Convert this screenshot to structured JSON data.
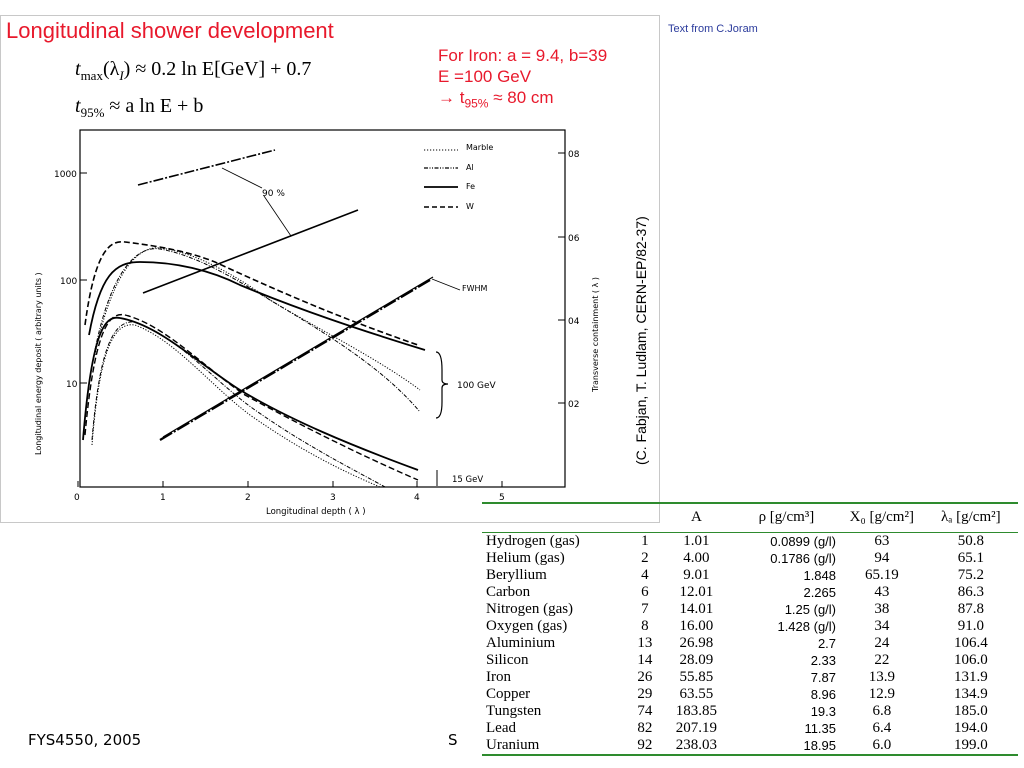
{
  "slide": {
    "title": "Longitudinal shower development",
    "credit": "Text from C.Joram",
    "iron_note": {
      "line1": "For Iron: a = 9.4, b=39",
      "line2": "E =100 GeV",
      "line3_prefix": "→ t",
      "line3_sub": "95%",
      "line3_suffix": " ≈ 80 cm"
    },
    "reference": "(C. Fabjan, T. Ludlam, CERN-EP/82-37)",
    "footer_left": "FYS4550, 2005",
    "footer_mid": "S"
  },
  "formulas": {
    "tmax": "t",
    "tmax_sub": "max",
    "tmax_rest": "(λ",
    "tmax_rest_sub": "I",
    "tmax_rhs": ") ≈ 0.2 ln E[GeV] + 0.7",
    "t95": "t",
    "t95_sub": "95%",
    "t95_rhs": " ≈ a ln E + b"
  },
  "plot": {
    "xlabel": "Longitudinal   depth  ( λ )",
    "ylabel_left": "Longitudinal   energy   deposit   ( arbitrary  units )",
    "ylabel_right": "Transverse   containment  ( λ )",
    "xticks": [
      "0",
      "1",
      "2",
      "3",
      "4",
      "5"
    ],
    "yticks_left": [
      "1000",
      "100",
      "10"
    ],
    "yticks_right": [
      "08",
      "06",
      "04",
      "02"
    ],
    "legend": [
      "Marble",
      "Al",
      "Fe",
      "W"
    ],
    "annotations": {
      "p90": "90 %",
      "fwhm": "FWHM",
      "gev100": "100 GeV",
      "gev15": "15 GeV"
    }
  },
  "table": {
    "headers": [
      "",
      "",
      "A",
      "ρ [g/cm³]",
      "X₀ [g/cm²]",
      "λₐ [g/cm²]"
    ],
    "rows": [
      [
        "Hydrogen (gas)",
        "1",
        "1.01",
        "0.0899 (g/l)",
        "63",
        "50.8"
      ],
      [
        "Helium (gas)",
        "2",
        "4.00",
        "0.1786 (g/l)",
        "94",
        "65.1"
      ],
      [
        "Beryllium",
        "4",
        "9.01",
        "1.848",
        "65.19",
        "75.2"
      ],
      [
        "Carbon",
        "6",
        "12.01",
        "2.265",
        "43",
        "86.3"
      ],
      [
        "Nitrogen (gas)",
        "7",
        "14.01",
        "1.25 (g/l)",
        "38",
        "87.8"
      ],
      [
        "Oxygen (gas)",
        "8",
        "16.00",
        "1.428 (g/l)",
        "34",
        "91.0"
      ],
      [
        "Aluminium",
        "13",
        "26.98",
        "2.7",
        "24",
        "106.4"
      ],
      [
        "Silicon",
        "14",
        "28.09",
        "2.33",
        "22",
        "106.0"
      ],
      [
        "Iron",
        "26",
        "55.85",
        "7.87",
        "13.9",
        "131.9"
      ],
      [
        "Copper",
        "29",
        "63.55",
        "8.96",
        "12.9",
        "134.9"
      ],
      [
        "Tungsten",
        "74",
        "183.85",
        "19.3",
        "6.8",
        "185.0"
      ],
      [
        "Lead",
        "82",
        "207.19",
        "11.35",
        "6.4",
        "194.0"
      ],
      [
        "Uranium",
        "92",
        "238.03",
        "18.95",
        "6.0",
        "199.0"
      ]
    ]
  }
}
